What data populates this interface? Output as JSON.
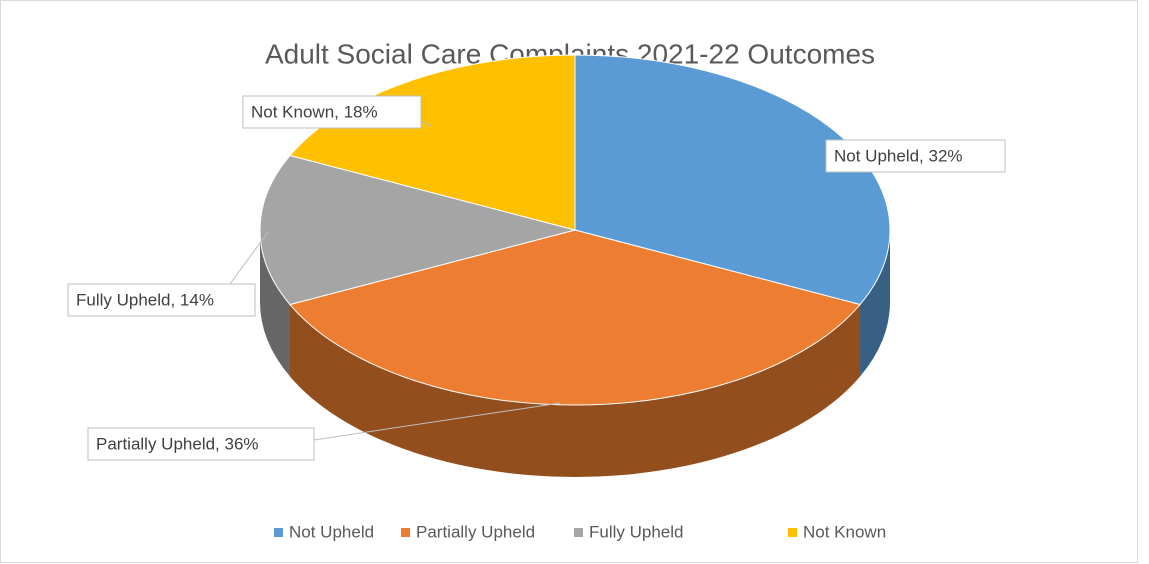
{
  "chart_data": {
    "type": "pie3d",
    "title": "Adult Social Care Complaints 2021-22 Outcomes",
    "categories": [
      "Not Upheld",
      "Partially Upheld",
      "Fully Upheld",
      "Not Known"
    ],
    "values": [
      32,
      36,
      14,
      18
    ],
    "value_labels": [
      "Not Upheld, 32%",
      "Partially Upheld, 36%",
      "Fully Upheld, 14%",
      "Not Known, 18%"
    ],
    "colors": [
      "#5b9bd5",
      "#ed7d31",
      "#a5a5a5",
      "#ffc000"
    ],
    "legend": "bottom"
  }
}
